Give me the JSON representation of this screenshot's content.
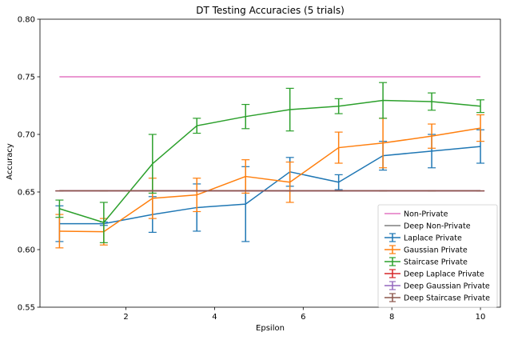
{
  "chart_data": {
    "type": "line",
    "title": "DT Testing Accuracies (5 trials)",
    "xlabel": "Epsilon",
    "ylabel": "Accuracy",
    "xlim": [
      0.06,
      10.45
    ],
    "ylim": [
      0.55,
      0.8
    ],
    "x_ticks": [
      2,
      4,
      6,
      8,
      10
    ],
    "y_ticks": [
      0.55,
      0.6,
      0.65,
      0.7,
      0.75,
      0.8
    ],
    "x_tick_labels": [
      "2",
      "4",
      "6",
      "8",
      "10"
    ],
    "y_tick_labels": [
      "0.55",
      "0.60",
      "0.65",
      "0.70",
      "0.75",
      "0.80"
    ],
    "grid": false,
    "legend_position": "lower-right",
    "x": [
      0.5,
      1.5,
      2.6,
      3.6,
      4.7,
      5.7,
      6.8,
      7.8,
      8.9,
      10.0
    ],
    "series": [
      {
        "name": "Non-Private",
        "kind": "line",
        "color": "#e377c2",
        "values": [
          0.75,
          0.75,
          0.75,
          0.75,
          0.75,
          0.75,
          0.75,
          0.75,
          0.75,
          0.75
        ]
      },
      {
        "name": "Deep Non-Private",
        "kind": "line",
        "color": "#7f7f7f",
        "values": [
          0.651,
          0.651,
          0.651,
          0.651,
          0.651,
          0.651,
          0.651,
          0.651,
          0.651,
          0.651
        ]
      },
      {
        "name": "Laplace Private",
        "kind": "errorbar",
        "color": "#1f77b4",
        "values": [
          0.6225,
          0.6225,
          0.6305,
          0.6365,
          0.6395,
          0.6675,
          0.6585,
          0.6815,
          0.6855,
          0.6895
        ],
        "errors": [
          0.0155,
          0.0015,
          0.0155,
          0.0205,
          0.0325,
          0.0125,
          0.0065,
          0.0125,
          0.0145,
          0.0145
        ]
      },
      {
        "name": "Gaussian Private",
        "kind": "errorbar",
        "color": "#ff7f0e",
        "values": [
          0.616,
          0.6155,
          0.6445,
          0.6475,
          0.6635,
          0.6585,
          0.6885,
          0.6925,
          0.6985,
          0.7055
        ],
        "errors": [
          0.0145,
          0.0115,
          0.0175,
          0.0145,
          0.0145,
          0.0175,
          0.0135,
          0.0215,
          0.0105,
          0.0115
        ]
      },
      {
        "name": "Staircase Private",
        "kind": "errorbar",
        "color": "#2ca02c",
        "values": [
          0.6355,
          0.6235,
          0.6745,
          0.7075,
          0.7155,
          0.7215,
          0.7245,
          0.7295,
          0.7285,
          0.7245
        ],
        "errors": [
          0.0075,
          0.0175,
          0.0255,
          0.0065,
          0.0105,
          0.0185,
          0.0065,
          0.0155,
          0.0075,
          0.0055
        ]
      },
      {
        "name": "Deep Laplace Private",
        "kind": "errorbar",
        "color": "#d62728",
        "values": [
          0.651,
          0.651,
          0.651,
          0.651,
          0.651,
          0.651,
          0.651,
          0.651,
          0.651,
          0.651
        ],
        "errors": [
          0,
          0,
          0,
          0,
          0,
          0,
          0,
          0,
          0,
          0
        ]
      },
      {
        "name": "Deep Gaussian Private",
        "kind": "errorbar",
        "color": "#9467bd",
        "values": [
          0.651,
          0.651,
          0.651,
          0.651,
          0.651,
          0.651,
          0.651,
          0.651,
          0.651,
          0.651
        ],
        "errors": [
          0,
          0,
          0,
          0,
          0,
          0,
          0,
          0,
          0,
          0
        ]
      },
      {
        "name": "Deep Staircase Private",
        "kind": "errorbar",
        "color": "#8c564b",
        "values": [
          0.651,
          0.651,
          0.651,
          0.651,
          0.651,
          0.651,
          0.651,
          0.651,
          0.651,
          0.651
        ],
        "errors": [
          0,
          0,
          0,
          0,
          0,
          0,
          0,
          0,
          0,
          0
        ]
      }
    ]
  }
}
